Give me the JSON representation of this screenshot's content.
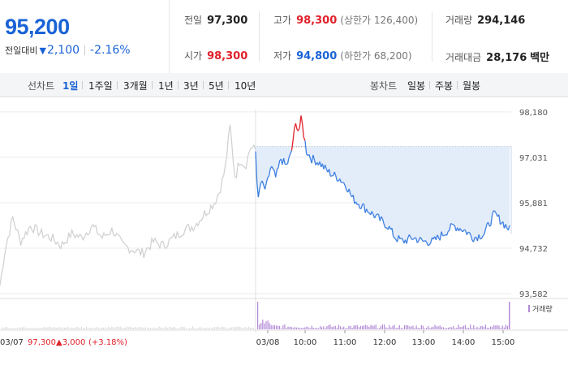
{
  "quote": {
    "price": "95,200",
    "change_label": "전일대비",
    "change_arrow": "▼",
    "change_value": "2,100",
    "change_pct": "-2.16%"
  },
  "stats": {
    "prev_close": {
      "label": "전일",
      "value": "97,300"
    },
    "open": {
      "label": "시가",
      "value": "98,300"
    },
    "high": {
      "label": "고가",
      "value": "98,300",
      "sub": "(상한가 126,400)"
    },
    "low": {
      "label": "저가",
      "value": "94,800",
      "sub": "(하한가 68,200)"
    },
    "volume": {
      "label": "거래량",
      "value": "294,146"
    },
    "amount": {
      "label": "거래대금",
      "value": "28,176",
      "unit": "백만"
    }
  },
  "toolbar": {
    "line_chart_label": "선차트",
    "periods": [
      "1일",
      "1주일",
      "3개월",
      "1년",
      "3년",
      "5년",
      "10년"
    ],
    "active_period": "1일",
    "candle_label": "봉차트",
    "candles": [
      "일봉",
      "주봉",
      "월봉"
    ]
  },
  "chart_data": {
    "type": "line",
    "y_ticks": [
      "98,180",
      "97,031",
      "95,881",
      "94,732",
      "93,582"
    ],
    "y_tick_values": [
      98180,
      97031,
      95881,
      94732,
      93582
    ],
    "x_ticks": [
      "03/08",
      "10:00",
      "11:00",
      "12:00",
      "13:00",
      "14:00",
      "15:00"
    ],
    "prev_day_label": "03/07",
    "prev_close_value": "97,300",
    "prev_close_change": "▲3,000",
    "prev_close_pct": "(+3.18%)",
    "volume_legend": "거래량",
    "reference_price": 97300,
    "prev_day_series": [
      {
        "t": 0.0,
        "v": 93800
      },
      {
        "t": 0.02,
        "v": 94700
      },
      {
        "t": 0.05,
        "v": 95500
      },
      {
        "t": 0.08,
        "v": 94900
      },
      {
        "t": 0.12,
        "v": 95300
      },
      {
        "t": 0.16,
        "v": 95100
      },
      {
        "t": 0.2,
        "v": 95000
      },
      {
        "t": 0.24,
        "v": 94800
      },
      {
        "t": 0.28,
        "v": 95100
      },
      {
        "t": 0.32,
        "v": 95000
      },
      {
        "t": 0.36,
        "v": 95300
      },
      {
        "t": 0.4,
        "v": 95000
      },
      {
        "t": 0.44,
        "v": 95200
      },
      {
        "t": 0.48,
        "v": 94800
      },
      {
        "t": 0.52,
        "v": 94700
      },
      {
        "t": 0.56,
        "v": 94600
      },
      {
        "t": 0.6,
        "v": 94900
      },
      {
        "t": 0.64,
        "v": 94800
      },
      {
        "t": 0.68,
        "v": 95000
      },
      {
        "t": 0.72,
        "v": 95200
      },
      {
        "t": 0.76,
        "v": 95300
      },
      {
        "t": 0.8,
        "v": 95600
      },
      {
        "t": 0.84,
        "v": 95900
      },
      {
        "t": 0.86,
        "v": 96200
      },
      {
        "t": 0.88,
        "v": 96700
      },
      {
        "t": 0.9,
        "v": 97800
      },
      {
        "t": 0.92,
        "v": 96500
      },
      {
        "t": 0.94,
        "v": 97000
      },
      {
        "t": 0.96,
        "v": 96800
      },
      {
        "t": 0.98,
        "v": 97300
      },
      {
        "t": 1.0,
        "v": 97200
      }
    ],
    "today_series": [
      {
        "t": 0.0,
        "v": 97200
      },
      {
        "t": 0.01,
        "v": 95900
      },
      {
        "t": 0.02,
        "v": 96400
      },
      {
        "t": 0.04,
        "v": 96200
      },
      {
        "t": 0.06,
        "v": 96800
      },
      {
        "t": 0.08,
        "v": 96500
      },
      {
        "t": 0.1,
        "v": 97000
      },
      {
        "t": 0.12,
        "v": 96800
      },
      {
        "t": 0.14,
        "v": 97100
      },
      {
        "t": 0.15,
        "v": 97600
      },
      {
        "t": 0.16,
        "v": 97900
      },
      {
        "t": 0.17,
        "v": 97700
      },
      {
        "t": 0.18,
        "v": 98000
      },
      {
        "t": 0.19,
        "v": 97600
      },
      {
        "t": 0.2,
        "v": 97200
      },
      {
        "t": 0.22,
        "v": 97000
      },
      {
        "t": 0.25,
        "v": 96900
      },
      {
        "t": 0.28,
        "v": 96700
      },
      {
        "t": 0.3,
        "v": 96600
      },
      {
        "t": 0.33,
        "v": 96500
      },
      {
        "t": 0.36,
        "v": 96300
      },
      {
        "t": 0.38,
        "v": 96000
      },
      {
        "t": 0.4,
        "v": 95900
      },
      {
        "t": 0.44,
        "v": 95700
      },
      {
        "t": 0.48,
        "v": 95500
      },
      {
        "t": 0.52,
        "v": 95300
      },
      {
        "t": 0.55,
        "v": 95000
      },
      {
        "t": 0.58,
        "v": 94900
      },
      {
        "t": 0.62,
        "v": 95000
      },
      {
        "t": 0.66,
        "v": 94900
      },
      {
        "t": 0.7,
        "v": 94900
      },
      {
        "t": 0.74,
        "v": 95100
      },
      {
        "t": 0.78,
        "v": 95300
      },
      {
        "t": 0.82,
        "v": 95200
      },
      {
        "t": 0.86,
        "v": 95000
      },
      {
        "t": 0.9,
        "v": 95100
      },
      {
        "t": 0.94,
        "v": 95600
      },
      {
        "t": 0.97,
        "v": 95400
      },
      {
        "t": 1.0,
        "v": 95200
      }
    ]
  },
  "colors": {
    "up": "#e1212a",
    "down": "#1a63d6",
    "line": "#3d7fe0",
    "fill": "#e3edfa",
    "prev_line": "#cfcfcf",
    "volume": "#b48ad8"
  }
}
